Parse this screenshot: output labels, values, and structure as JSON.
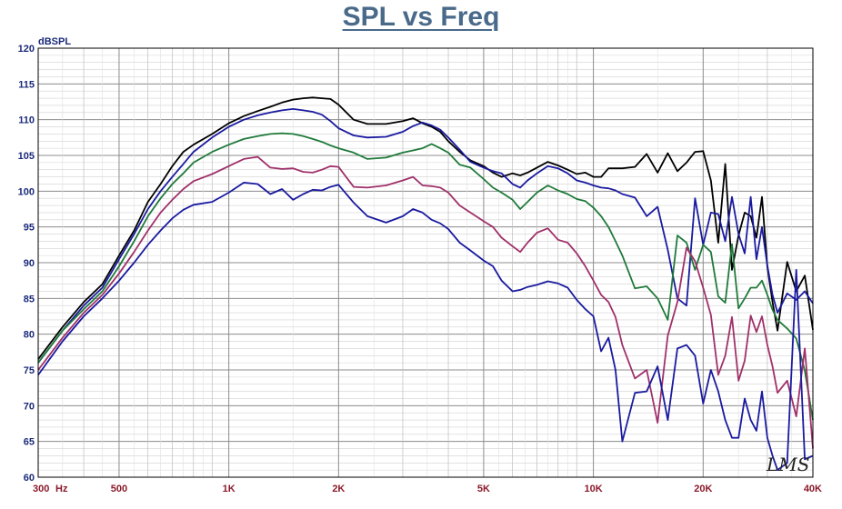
{
  "chart_data": {
    "type": "line",
    "title": "SPL vs Freq",
    "ylabel": "dBSPL",
    "xscale": "log",
    "xlim": [
      300,
      40000
    ],
    "ylim": [
      60,
      120
    ],
    "grid": true,
    "yticks": [
      60,
      65,
      70,
      75,
      80,
      85,
      90,
      95,
      100,
      105,
      110,
      115,
      120
    ],
    "xticks": [
      {
        "value": 300,
        "label": "300"
      },
      {
        "value": 500,
        "label": "500"
      },
      {
        "value": 1000,
        "label": "1K"
      },
      {
        "value": 2000,
        "label": "2K"
      },
      {
        "value": 5000,
        "label": "5K"
      },
      {
        "value": 10000,
        "label": "10K"
      },
      {
        "value": 20000,
        "label": "20K"
      },
      {
        "value": 40000,
        "label": "40K"
      }
    ],
    "x_unit_label": "Hz",
    "watermark": "LMS",
    "colors": {
      "title": "#4a6a8a",
      "yaxis": "#1a2a7a",
      "xaxis": "#8a1a2a",
      "grid": "#b4b4b4"
    },
    "series": [
      {
        "color": "#000000",
        "x": [
          300,
          350,
          400,
          450,
          500,
          550,
          600,
          650,
          700,
          750,
          800,
          900,
          1000,
          1100,
          1200,
          1300,
          1400,
          1500,
          1600,
          1700,
          1800,
          1900,
          2000,
          2200,
          2400,
          2700,
          3000,
          3200,
          3400,
          3600,
          3800,
          4000,
          4300,
          4600,
          5000,
          5300,
          5600,
          6000,
          6300,
          6600,
          7000,
          7500,
          8000,
          8500,
          9000,
          9500,
          10000,
          10500,
          11000,
          11500,
          12000,
          13000,
          14000,
          15000,
          16000,
          17000,
          18000,
          19000,
          20000,
          21000,
          22000,
          23000,
          24000,
          25000,
          26000,
          27000,
          28000,
          29000,
          30000,
          31000,
          32000,
          34000,
          36000,
          38000,
          40000
        ],
        "y": [
          76.5,
          81,
          84.5,
          87,
          91,
          94.5,
          98.5,
          101,
          103.5,
          105.5,
          106.5,
          108,
          109.5,
          110.5,
          111.2,
          111.8,
          112.4,
          112.8,
          113,
          113.1,
          113,
          112.9,
          112.1,
          110,
          109.4,
          109.4,
          109.8,
          110.2,
          109.5,
          109,
          108.3,
          107,
          105.5,
          104.3,
          103.5,
          102.6,
          102,
          102.5,
          102.2,
          102.6,
          103.3,
          104.1,
          103.6,
          103,
          102.4,
          102.6,
          102,
          102,
          103.2,
          103.2,
          103.2,
          103.4,
          105.2,
          102.6,
          105.3,
          102.8,
          104,
          105.5,
          105.6,
          101.5,
          92.8,
          103.8,
          89,
          93.8,
          97,
          96.5,
          93.5,
          99.2,
          89.4,
          84.5,
          80.5,
          90.1,
          86,
          88.2,
          80.6
        ]
      },
      {
        "color": "#1a1aa0",
        "x": [
          300,
          350,
          400,
          450,
          500,
          550,
          600,
          650,
          700,
          750,
          800,
          900,
          1000,
          1100,
          1200,
          1300,
          1400,
          1500,
          1600,
          1700,
          1800,
          1900,
          2000,
          2200,
          2400,
          2700,
          3000,
          3200,
          3400,
          3600,
          3800,
          4000,
          4300,
          4600,
          5000,
          5300,
          5600,
          6000,
          6300,
          6600,
          7000,
          7500,
          8000,
          8500,
          9000,
          9500,
          10000,
          10500,
          11000,
          11500,
          12000,
          13000,
          14000,
          15000,
          16000,
          17000,
          18000,
          19000,
          20000,
          21000,
          22000,
          23000,
          24000,
          25000,
          26000,
          27000,
          28000,
          29000,
          30000,
          31000,
          32000,
          34000,
          36000,
          38000,
          40000
        ],
        "y": [
          76,
          80.5,
          84,
          86.5,
          90.5,
          94,
          97.5,
          100,
          102,
          103.8,
          105.5,
          107.5,
          109,
          110,
          110.6,
          111,
          111.3,
          111.5,
          111.3,
          111.1,
          110.7,
          109.8,
          108.8,
          107.8,
          107.5,
          107.6,
          108.3,
          109.1,
          109.6,
          109.2,
          108.6,
          107.5,
          105.8,
          104.1,
          103.3,
          102.8,
          102.5,
          101,
          100.5,
          101.5,
          102.5,
          103.5,
          103.2,
          102.5,
          101.5,
          101.2,
          100.8,
          100.5,
          100.4,
          100.1,
          99.6,
          99.1,
          96.5,
          97.8,
          91.8,
          85,
          84,
          99,
          92.5,
          97,
          96.8,
          93,
          99.2,
          94,
          91.3,
          99.2,
          90.5,
          95,
          89.6,
          85.5,
          83,
          85.7,
          84.8,
          86,
          84.3
        ]
      },
      {
        "color": "#1f7a3a",
        "x": [
          300,
          350,
          400,
          450,
          500,
          550,
          600,
          650,
          700,
          750,
          800,
          900,
          1000,
          1100,
          1200,
          1300,
          1400,
          1500,
          1600,
          1700,
          1800,
          1900,
          2000,
          2200,
          2400,
          2700,
          3000,
          3200,
          3400,
          3600,
          3800,
          4000,
          4300,
          4600,
          5000,
          5300,
          5600,
          6000,
          6300,
          6600,
          7000,
          7500,
          8000,
          8500,
          9000,
          9500,
          10000,
          10500,
          11000,
          11500,
          12000,
          13000,
          14000,
          15000,
          16000,
          17000,
          18000,
          19000,
          20000,
          21000,
          22000,
          23000,
          24000,
          25000,
          26000,
          27000,
          28000,
          29000,
          30000,
          31000,
          32000,
          34000,
          36000,
          38000,
          40000
        ],
        "y": [
          76,
          80.5,
          83.5,
          86,
          89.5,
          93,
          96.5,
          99,
          101,
          102.5,
          104,
          105.5,
          106.5,
          107.3,
          107.7,
          108,
          108.1,
          108,
          107.7,
          107.3,
          106.9,
          106.4,
          106,
          105.4,
          104.5,
          104.7,
          105.4,
          105.7,
          106,
          106.6,
          106,
          105.4,
          103.7,
          103.3,
          101.7,
          100.5,
          99.8,
          98.8,
          97.5,
          98.5,
          99.8,
          100.8,
          100.1,
          99.6,
          98.9,
          98.6,
          97.7,
          96.5,
          95,
          93,
          91,
          86.4,
          86.7,
          85,
          82,
          93.8,
          92.8,
          89,
          92.5,
          91.5,
          85.3,
          84.4,
          92.6,
          83.6,
          85,
          86.5,
          86.5,
          87.5,
          85.5,
          83.4,
          82,
          80.8,
          79.4,
          74.9,
          68
        ]
      },
      {
        "color": "#a0306a",
        "x": [
          300,
          350,
          400,
          450,
          500,
          550,
          600,
          650,
          700,
          750,
          800,
          900,
          1000,
          1100,
          1200,
          1300,
          1400,
          1500,
          1600,
          1700,
          1800,
          1900,
          2000,
          2200,
          2400,
          2700,
          3000,
          3200,
          3400,
          3600,
          3800,
          4000,
          4300,
          4600,
          5000,
          5300,
          5600,
          6000,
          6300,
          6600,
          7000,
          7500,
          8000,
          8500,
          9000,
          9500,
          10000,
          10500,
          11000,
          11500,
          12000,
          13000,
          14000,
          15000,
          16000,
          17000,
          18000,
          19000,
          20000,
          21000,
          22000,
          23000,
          24000,
          25000,
          26000,
          27000,
          28000,
          29000,
          30000,
          31000,
          32000,
          34000,
          36000,
          38000,
          40000
        ],
        "y": [
          75,
          79.5,
          83,
          85.5,
          88.5,
          91.5,
          94.5,
          97,
          98.8,
          100.3,
          101.4,
          102.4,
          103.5,
          104.5,
          104.8,
          103.3,
          103.1,
          103.2,
          102.7,
          102.6,
          103,
          103.5,
          103.4,
          100.6,
          100.5,
          100.8,
          101.5,
          102,
          100.8,
          100.7,
          100.5,
          99.8,
          98,
          97,
          95.8,
          95,
          93.5,
          92.3,
          91.5,
          92.8,
          94.2,
          94.8,
          93.2,
          92.8,
          91.3,
          89.5,
          87.5,
          85.5,
          84.5,
          82.4,
          78.5,
          73.8,
          75,
          67.6,
          79.8,
          84.5,
          92.1,
          90.2,
          86.5,
          82.7,
          74.3,
          77,
          82.4,
          73.5,
          76.3,
          82.6,
          80.3,
          82.5,
          78.5,
          75.5,
          71.8,
          73.5,
          68.5,
          78,
          64
        ]
      },
      {
        "color": "#1a1aa0",
        "x": [
          300,
          350,
          400,
          450,
          500,
          550,
          600,
          650,
          700,
          750,
          800,
          900,
          1000,
          1100,
          1200,
          1300,
          1400,
          1500,
          1600,
          1700,
          1800,
          1900,
          2000,
          2200,
          2400,
          2700,
          3000,
          3200,
          3400,
          3600,
          3800,
          4000,
          4300,
          4600,
          5000,
          5300,
          5600,
          6000,
          6300,
          6600,
          7000,
          7500,
          8000,
          8500,
          9000,
          9500,
          10000,
          10500,
          11000,
          11500,
          12000,
          13000,
          14000,
          15000,
          16000,
          17000,
          18000,
          19000,
          20000,
          21000,
          22000,
          23000,
          24000,
          25000,
          26000,
          27000,
          28000,
          29000,
          30000,
          31000,
          32000,
          34000,
          36000,
          38000,
          40000
        ],
        "y": [
          74.3,
          79,
          82.5,
          85,
          87.5,
          90,
          92.5,
          94.5,
          96.2,
          97.4,
          98.1,
          98.5,
          99.8,
          101.2,
          101,
          99.6,
          100.3,
          98.8,
          99.6,
          100.2,
          100.1,
          100.6,
          100.9,
          98.4,
          96.5,
          95.6,
          96.5,
          97.5,
          97,
          96,
          95.5,
          94.7,
          92.8,
          91.7,
          90.3,
          89.5,
          87.5,
          86,
          86.2,
          86.6,
          86.9,
          87.4,
          87.1,
          86.5,
          84.8,
          83.5,
          82.5,
          77.6,
          79.5,
          75,
          65,
          71.8,
          72,
          75.5,
          68,
          78,
          78.5,
          77,
          70.3,
          75,
          72,
          68,
          65.5,
          65.5,
          71,
          68,
          66.5,
          72,
          65.5,
          63,
          61,
          62,
          89,
          62.5,
          63
        ]
      }
    ]
  }
}
